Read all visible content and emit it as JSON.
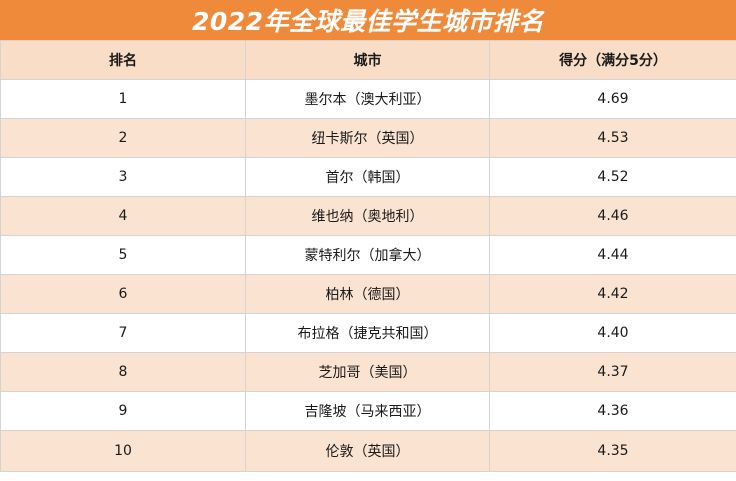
{
  "title": "2022年全球最佳学生城市排名",
  "headers": {
    "rank": "排名",
    "city": "城市",
    "score": "得分（满分5分）"
  },
  "rows": [
    {
      "rank": "1",
      "city": "墨尔本（澳大利亚）",
      "score": "4.69"
    },
    {
      "rank": "2",
      "city": "纽卡斯尔（英国）",
      "score": "4.53"
    },
    {
      "rank": "3",
      "city": "首尔（韩国）",
      "score": "4.52"
    },
    {
      "rank": "4",
      "city": "维也纳（奥地利）",
      "score": "4.46"
    },
    {
      "rank": "5",
      "city": "蒙特利尔（加拿大）",
      "score": "4.44"
    },
    {
      "rank": "6",
      "city": "柏林（德国）",
      "score": "4.42"
    },
    {
      "rank": "7",
      "city": "布拉格（捷克共和国）",
      "score": "4.40"
    },
    {
      "rank": "8",
      "city": "芝加哥（美国）",
      "score": "4.37"
    },
    {
      "rank": "9",
      "city": "吉隆坡（马来西亚）",
      "score": "4.36"
    },
    {
      "rank": "10",
      "city": "伦敦（英国）",
      "score": "4.35"
    }
  ],
  "colors": {
    "title_bg": "#ef8a3a",
    "header_bg": "#f9ddc6",
    "stripe_bg": "#fae3d1"
  }
}
